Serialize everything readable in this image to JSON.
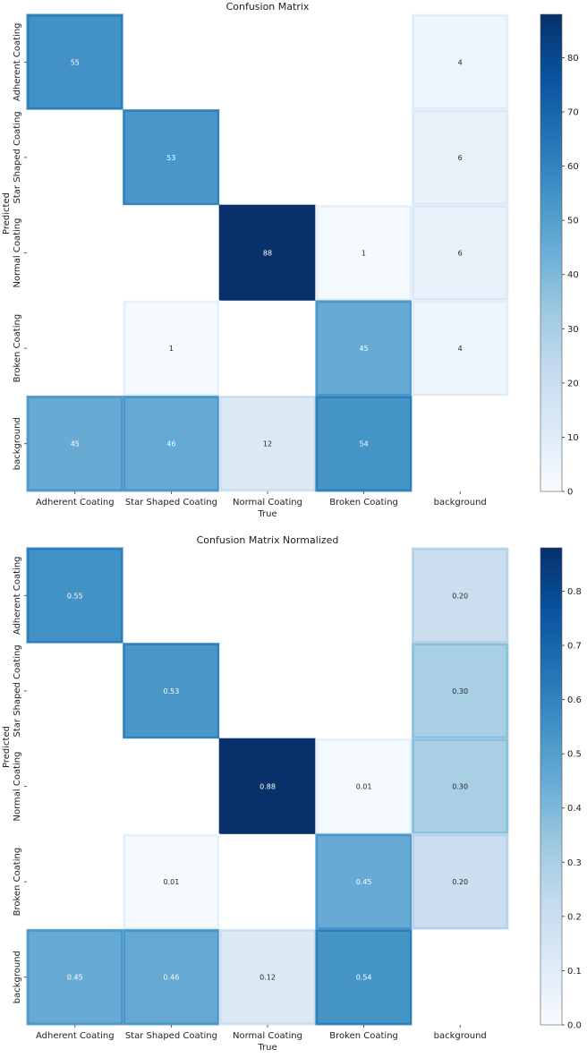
{
  "chart_data": [
    {
      "type": "heatmap",
      "title": "Confusion Matrix",
      "xlabel": "True",
      "ylabel": "Predicted",
      "x_categories": [
        "Adherent Coating",
        "Star Shaped Coating",
        "Normal Coating",
        "Broken Coating",
        "background"
      ],
      "y_categories": [
        "Adherent Coating",
        "Star Shaped Coating",
        "Normal Coating",
        "Broken Coating",
        "background"
      ],
      "values": [
        [
          55,
          null,
          null,
          null,
          4
        ],
        [
          null,
          53,
          null,
          null,
          6
        ],
        [
          null,
          null,
          88,
          1,
          6
        ],
        [
          null,
          1,
          null,
          45,
          4
        ],
        [
          45,
          46,
          12,
          54,
          null
        ]
      ],
      "cell_labels": [
        [
          "55",
          "",
          "",
          "",
          "4"
        ],
        [
          "",
          "53",
          "",
          "",
          "6"
        ],
        [
          "",
          "",
          "88",
          "1",
          "6"
        ],
        [
          "",
          "1",
          "",
          "45",
          "4"
        ],
        [
          "45",
          "46",
          "12",
          "54",
          ""
        ]
      ],
      "vmin": 0,
      "vmax": 88,
      "colorbar_ticks": [
        "0",
        "10",
        "20",
        "30",
        "40",
        "50",
        "60",
        "70",
        "80"
      ],
      "colorbar_tick_values": [
        0,
        10,
        20,
        30,
        40,
        50,
        60,
        70,
        80
      ],
      "colormap": "Blues"
    },
    {
      "type": "heatmap",
      "title": "Confusion Matrix Normalized",
      "xlabel": "True",
      "ylabel": "Predicted",
      "x_categories": [
        "Adherent Coating",
        "Star Shaped Coating",
        "Normal Coating",
        "Broken Coating",
        "background"
      ],
      "y_categories": [
        "Adherent Coating",
        "Star Shaped Coating",
        "Normal Coating",
        "Broken Coating",
        "background"
      ],
      "values": [
        [
          0.55,
          null,
          null,
          null,
          0.2
        ],
        [
          null,
          0.53,
          null,
          null,
          0.3
        ],
        [
          null,
          null,
          0.88,
          0.01,
          0.3
        ],
        [
          null,
          0.01,
          null,
          0.45,
          0.2
        ],
        [
          0.45,
          0.46,
          0.12,
          0.54,
          null
        ]
      ],
      "cell_labels": [
        [
          "0.55",
          "",
          "",
          "",
          "0.20"
        ],
        [
          "",
          "0.53",
          "",
          "",
          "0.30"
        ],
        [
          "",
          "",
          "0.88",
          "0.01",
          "0.30"
        ],
        [
          "",
          "0.01",
          "",
          "0.45",
          "0.20"
        ],
        [
          "0.45",
          "0.46",
          "0.12",
          "0.54",
          ""
        ]
      ],
      "vmin": 0,
      "vmax": 0.88,
      "colorbar_ticks": [
        "0.0",
        "0.1",
        "0.2",
        "0.3",
        "0.4",
        "0.5",
        "0.6",
        "0.7",
        "0.8"
      ],
      "colorbar_tick_values": [
        0.0,
        0.1,
        0.2,
        0.3,
        0.4,
        0.5,
        0.6,
        0.7,
        0.8
      ],
      "colormap": "Blues"
    }
  ],
  "colors": {
    "blues_scale": [
      "#f7fbff",
      "#deebf7",
      "#c6dbef",
      "#9ecae1",
      "#6baed6",
      "#4292c6",
      "#2171b5",
      "#08519c",
      "#08306b"
    ],
    "empty_cell": "#ffffff",
    "dark_text": "#262626",
    "light_text": "#ffffff"
  }
}
